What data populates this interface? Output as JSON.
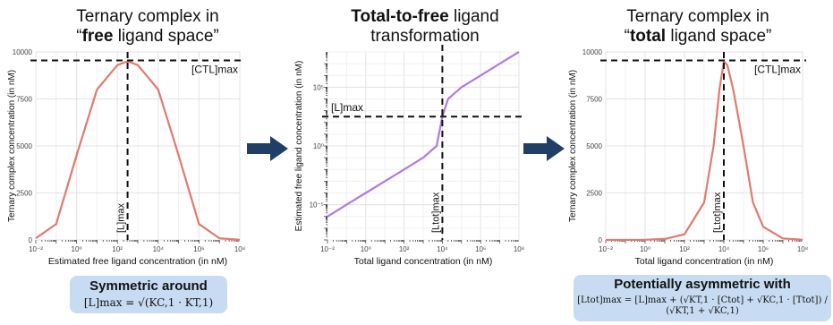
{
  "colors": {
    "curve_left": "#e07b6e",
    "curve_middle": "#b07be0",
    "curve_right": "#e07b6e",
    "arrow": "#1f3f66",
    "box": "#c7dcf3"
  },
  "panels": [
    {
      "title_line1": "Ternary complex in",
      "title_pre": "“",
      "title_bold": "free",
      "title_post": " ligand space”"
    },
    {
      "title_bold": "Total-to-free",
      "title_rest": " ligand",
      "title_line2": "transformation"
    },
    {
      "title_line1": "Ternary complex in",
      "title_pre": "“",
      "title_bold": "total",
      "title_post": " ligand space”"
    }
  ],
  "boxes": {
    "left_heading": "Symmetric around",
    "left_formula": "[L]max = √(KC,1 · KT,1)",
    "right_heading": "Potentially asymmetric with",
    "right_formula": "[Ltot]max = [L]max + (√KT,1 · [Ctot] + √KC,1 · [Ttot]) / (√KT,1 + √KC,1)"
  },
  "chart_data": [
    {
      "type": "line",
      "title": "",
      "xlabel": "Estimated free ligand concentration (in nM)",
      "ylabel": "Ternary complex concentration (in nM)",
      "x_scale": "log",
      "xlim": [
        0.01,
        100000000
      ],
      "ylim": [
        0,
        10000
      ],
      "x_ticks": [
        "10⁻²",
        "10⁰",
        "10²",
        "10⁴",
        "10⁶",
        "10⁸"
      ],
      "y_ticks": [
        "0",
        "2500",
        "5000",
        "7500",
        "10000"
      ],
      "series": [
        {
          "x": [
            0.01,
            0.1,
            1,
            10,
            100,
            316,
            1000,
            10000,
            100000,
            1000000,
            10000000,
            100000000
          ],
          "y": [
            90,
            850,
            4500,
            8000,
            9300,
            9500,
            9300,
            8000,
            4500,
            850,
            90,
            10
          ]
        }
      ],
      "annotations": {
        "hline_y": 9550,
        "vline_x": 316,
        "hline_label": "[CTL]max",
        "vline_label": "[L]max"
      },
      "grid": true
    },
    {
      "type": "line",
      "title": "",
      "xlabel": "Total ligand concentration (in nM)",
      "ylabel": "Estimated free ligand concentration (in nM)",
      "x_scale": "log",
      "y_scale": "log",
      "xlim": [
        0.01,
        100000000
      ],
      "ylim": [
        1e-08,
        100000000
      ],
      "x_ticks": [
        "10⁻²",
        "10⁰",
        "10²",
        "10⁴",
        "10⁶",
        "10⁸"
      ],
      "y_ticks": [
        "10⁻⁵",
        "10⁰",
        "10⁵"
      ],
      "series": [
        {
          "x": [
            0.01,
            0.1,
            1,
            10,
            100,
            1000,
            5000,
            10000,
            20000,
            100000,
            1000000,
            10000000,
            100000000
          ],
          "y": [
            1e-06,
            1e-05,
            0.0001,
            0.001,
            0.01,
            0.1,
            1,
            316,
            10000,
            100000,
            1000000,
            10000000,
            100000000
          ]
        }
      ],
      "annotations": {
        "hline_y": 316,
        "vline_x": 10000,
        "hline_label": "[L]max",
        "vline_label": "[Ltot]max"
      },
      "grid": true
    },
    {
      "type": "line",
      "title": "",
      "xlabel": "Total ligand concentration (in nM)",
      "ylabel": "Ternary complex concentration (in nM)",
      "x_scale": "log",
      "xlim": [
        0.01,
        100000000
      ],
      "ylim": [
        0,
        10000
      ],
      "x_ticks": [
        "10⁻²",
        "10⁰",
        "10²",
        "10⁴",
        "10⁶",
        "10⁸"
      ],
      "y_ticks": [
        "0",
        "2500",
        "5000",
        "7500",
        "10000"
      ],
      "series": [
        {
          "x": [
            0.01,
            0.1,
            1,
            10,
            100,
            1000,
            3000,
            6000,
            10000,
            15000,
            30000,
            100000,
            300000,
            1000000,
            10000000,
            100000000
          ],
          "y": [
            0,
            0,
            10,
            50,
            300,
            2000,
            5000,
            8000,
            9500,
            9300,
            8000,
            5000,
            2000,
            700,
            80,
            10
          ]
        }
      ],
      "annotations": {
        "hline_y": 9550,
        "vline_x": 10000,
        "hline_label": "[CTL]max",
        "vline_label": "[Ltot]max"
      },
      "grid": true
    }
  ]
}
